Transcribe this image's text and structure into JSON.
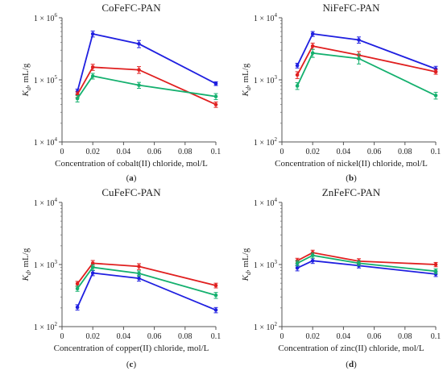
{
  "panels": [
    {
      "letter": "(a)"
    },
    {
      "letter": "(b)"
    },
    {
      "letter": "(c)"
    },
    {
      "letter": "(d)"
    }
  ],
  "chart_data": [
    {
      "type": "line",
      "title": "CoFeFC-PAN",
      "xlabel": "Concentration of cobalt(II) chloride, mol/L",
      "ylabel": "K_d, mL/g",
      "x": [
        0.01,
        0.02,
        0.05,
        0.1
      ],
      "xticks": [
        0,
        0.02,
        0.04,
        0.06,
        0.08,
        0.1
      ],
      "xtick_labels": [
        "0",
        "0.02",
        "0.04",
        "0.06",
        "0.08",
        "0.1"
      ],
      "xlim": [
        0,
        0.1
      ],
      "ylim": [
        10000,
        1000000
      ],
      "yscale": "log",
      "ytick_labels": [
        {
          "m": "1 × 10",
          "e": "4"
        },
        {
          "m": "1 × 10",
          "e": "5"
        },
        {
          "m": "1 × 10",
          "e": "6"
        }
      ],
      "series": [
        {
          "color": "#1f1fe0",
          "values": [
            65000,
            550000,
            380000,
            87000
          ],
          "errors": [
            6000,
            60000,
            50000,
            6000
          ]
        },
        {
          "color": "#e01f1f",
          "values": [
            58000,
            160000,
            145000,
            40000
          ],
          "errors": [
            6000,
            18000,
            18000,
            4000
          ]
        },
        {
          "color": "#14b06e",
          "values": [
            50000,
            115000,
            82000,
            54000
          ],
          "errors": [
            6000,
            12000,
            9000,
            6000
          ]
        }
      ]
    },
    {
      "type": "line",
      "title": "NiFeFC-PAN",
      "xlabel": "Concentration of nickel(II) chloride, mol/L",
      "ylabel": "K_d, mL/g",
      "x": [
        0.01,
        0.02,
        0.05,
        0.1
      ],
      "xticks": [
        0,
        0.02,
        0.04,
        0.06,
        0.08,
        0.1
      ],
      "xtick_labels": [
        "0",
        "0.02",
        "0.04",
        "0.06",
        "0.08",
        "0.1"
      ],
      "xlim": [
        0,
        0.1
      ],
      "ylim": [
        100,
        10000
      ],
      "yscale": "log",
      "ytick_labels": [
        {
          "m": "1 × 10",
          "e": "2"
        },
        {
          "m": "1 × 10",
          "e": "3"
        },
        {
          "m": "1 × 10",
          "e": "4"
        }
      ],
      "series": [
        {
          "color": "#1f1fe0",
          "values": [
            1700,
            5500,
            4400,
            1500
          ],
          "errors": [
            150,
            500,
            500,
            150
          ]
        },
        {
          "color": "#e01f1f",
          "values": [
            1200,
            3500,
            2500,
            1350
          ],
          "errors": [
            150,
            400,
            350,
            120
          ]
        },
        {
          "color": "#14b06e",
          "values": [
            800,
            2700,
            2200,
            560
          ],
          "errors": [
            100,
            400,
            400,
            70
          ]
        }
      ]
    },
    {
      "type": "line",
      "title": "CuFeFC-PAN",
      "xlabel": "Concentration of copper(II) chloride, mol/L",
      "ylabel": "K_d, mL/g",
      "x": [
        0.01,
        0.02,
        0.05,
        0.1
      ],
      "xticks": [
        0,
        0.02,
        0.04,
        0.06,
        0.08,
        0.1
      ],
      "xtick_labels": [
        "0",
        "0.02",
        "0.04",
        "0.06",
        "0.08",
        "0.1"
      ],
      "xlim": [
        0,
        0.1
      ],
      "ylim": [
        100,
        10000
      ],
      "yscale": "log",
      "ytick_labels": [
        {
          "m": "1 × 10",
          "e": "2"
        },
        {
          "m": "1 × 10",
          "e": "3"
        },
        {
          "m": "1 × 10",
          "e": "4"
        }
      ],
      "series": [
        {
          "color": "#1f1fe0",
          "values": [
            205,
            730,
            600,
            185
          ],
          "errors": [
            20,
            70,
            60,
            18
          ]
        },
        {
          "color": "#e01f1f",
          "values": [
            490,
            1050,
            930,
            460
          ],
          "errors": [
            45,
            110,
            100,
            40
          ]
        },
        {
          "color": "#14b06e",
          "values": [
            410,
            900,
            720,
            320
          ],
          "errors": [
            40,
            90,
            70,
            35
          ]
        }
      ]
    },
    {
      "type": "line",
      "title": "ZnFeFC-PAN",
      "xlabel": "Concentration of zinc(II) chloride, mol/L",
      "ylabel": "K_d, mL/g",
      "x": [
        0.01,
        0.02,
        0.05,
        0.1
      ],
      "xticks": [
        0,
        0.02,
        0.04,
        0.06,
        0.08,
        0.1
      ],
      "xtick_labels": [
        "0",
        "0.02",
        "0.04",
        "0.06",
        "0.08",
        "0.1"
      ],
      "xlim": [
        0,
        0.1
      ],
      "ylim": [
        100,
        10000
      ],
      "yscale": "log",
      "ytick_labels": [
        {
          "m": "1 × 10",
          "e": "2"
        },
        {
          "m": "1 × 10",
          "e": "3"
        },
        {
          "m": "1 × 10",
          "e": "4"
        }
      ],
      "series": [
        {
          "color": "#1f1fe0",
          "values": [
            880,
            1150,
            960,
            700
          ],
          "errors": [
            90,
            110,
            80,
            60
          ]
        },
        {
          "color": "#e01f1f",
          "values": [
            1150,
            1550,
            1130,
            1000
          ],
          "errors": [
            110,
            150,
            110,
            80
          ]
        },
        {
          "color": "#14b06e",
          "values": [
            1050,
            1400,
            1050,
            780
          ],
          "errors": [
            100,
            130,
            90,
            70
          ]
        }
      ]
    }
  ]
}
